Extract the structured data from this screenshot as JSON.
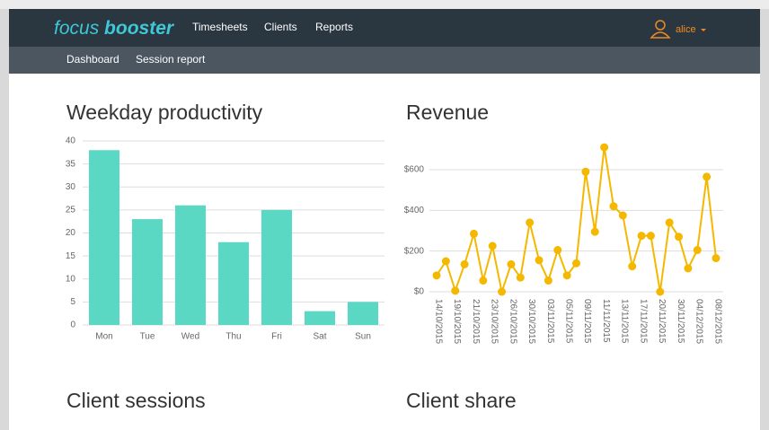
{
  "nav": {
    "logo_light": "focus",
    "logo_bold": "booster",
    "links": [
      "Timesheets",
      "Clients",
      "Reports"
    ],
    "user": "alice"
  },
  "subnav": [
    "Dashboard",
    "Session report"
  ],
  "sections": [
    "Client sessions",
    "Client share"
  ],
  "chart_data": [
    {
      "type": "bar",
      "title": "Weekday productivity",
      "categories": [
        "Mon",
        "Tue",
        "Wed",
        "Thu",
        "Fri",
        "Sat",
        "Sun"
      ],
      "values": [
        38,
        23,
        26,
        18,
        25,
        3,
        5
      ],
      "color": "#5ad8c4",
      "ylim": [
        0,
        40
      ],
      "yticks": [
        0,
        5,
        10,
        15,
        20,
        25,
        30,
        35,
        40
      ],
      "grid": true
    },
    {
      "type": "line",
      "title": "Revenue",
      "categories": [
        "14/10/2015",
        null,
        "19/10/2015",
        null,
        "21/10/2015",
        null,
        "23/10/2015",
        null,
        "26/10/2015",
        null,
        "30/10/2015",
        null,
        "03/11/2015",
        null,
        "05/11/2015",
        null,
        "09/11/2015",
        null,
        "11/11/2015",
        null,
        "13/11/2015",
        null,
        "17/11/2015",
        null,
        "20/11/2015",
        null,
        "30/11/2015",
        null,
        "04/12/2015",
        null,
        "08/12/2015"
      ],
      "values": [
        80,
        150,
        5,
        135,
        285,
        55,
        225,
        0,
        135,
        70,
        340,
        155,
        55,
        205,
        80,
        140,
        590,
        295,
        710,
        420,
        375,
        125,
        275,
        275,
        0,
        340,
        270,
        115,
        205,
        565,
        165
      ],
      "color": "#f5b800",
      "ylim": [
        0,
        750
      ],
      "yticks": [
        {
          "value": 0,
          "label": "$0"
        },
        {
          "value": 200,
          "label": "$200"
        },
        {
          "value": 400,
          "label": "$400"
        },
        {
          "value": 600,
          "label": "$600"
        }
      ],
      "grid": true
    }
  ]
}
